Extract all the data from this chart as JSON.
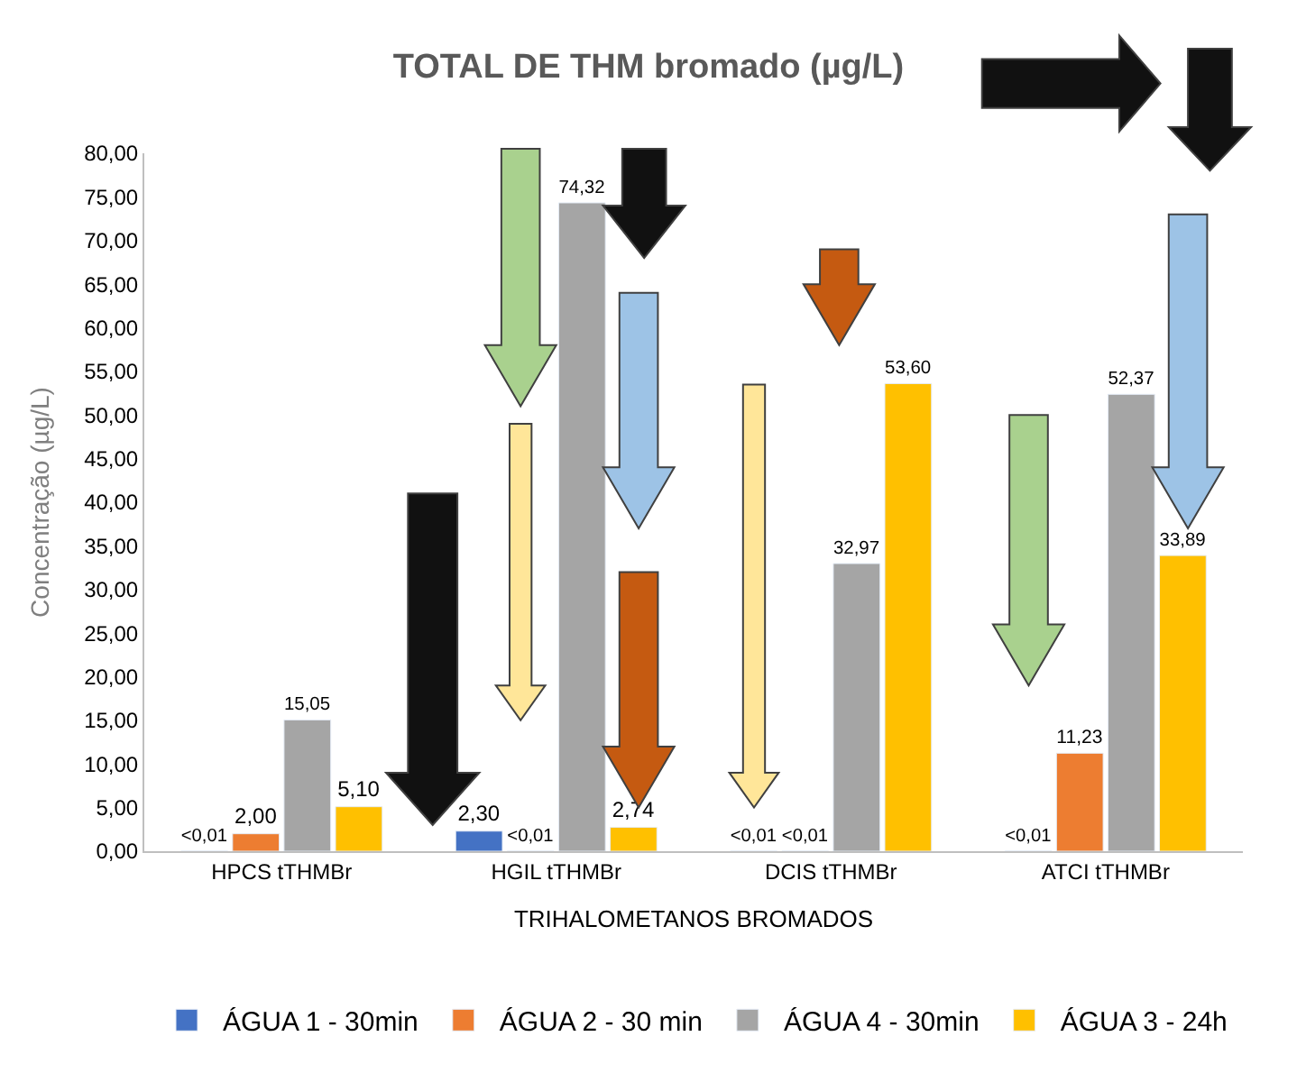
{
  "chart_data": {
    "type": "bar",
    "title": "TOTAL DE THM bromado (µg/L)",
    "xlabel": "TRIHALOMETANOS BROMADOS",
    "ylabel": "Concentração (µg/L)",
    "categories": [
      "HPCS tTHMBr",
      "HGIL tTHMBr",
      "DCIS tTHMBr",
      "ATCI tTHMBr"
    ],
    "series": [
      {
        "name": "ÁGUA 1 - 30min",
        "color": "#4472c4",
        "values": [
          0.01,
          2.3,
          0.01,
          0.01
        ],
        "value_labels": [
          "<0,01",
          "2,30",
          "<0,01",
          "<0,01"
        ]
      },
      {
        "name": "ÁGUA 2 - 30 min",
        "color": "#ed7d31",
        "values": [
          2.0,
          0.01,
          0.01,
          11.23
        ],
        "value_labels": [
          "2,00",
          "<0,01",
          "<0,01",
          "11,23"
        ]
      },
      {
        "name": "ÁGUA 4 - 30min",
        "color": "#a5a5a5",
        "values": [
          15.05,
          74.32,
          32.97,
          52.37
        ],
        "value_labels": [
          "15,05",
          "74,32",
          "32,97",
          "52,37"
        ]
      },
      {
        "name": "ÁGUA 3 - 24h",
        "color": "#ffc000",
        "values": [
          5.1,
          2.74,
          53.6,
          33.89
        ],
        "value_labels": [
          "5,10",
          "2,74",
          "53,60",
          "33,89"
        ]
      }
    ],
    "ylim": [
      0,
      80
    ],
    "yticks": [
      {
        "value": 0,
        "label": "0,00"
      },
      {
        "value": 5,
        "label": "5,00"
      },
      {
        "value": 10,
        "label": "10,00"
      },
      {
        "value": 15,
        "label": "15,00"
      },
      {
        "value": 20,
        "label": "20,00"
      },
      {
        "value": 25,
        "label": "25,00"
      },
      {
        "value": 30,
        "label": "30,00"
      },
      {
        "value": 35,
        "label": "35,00"
      },
      {
        "value": 40,
        "label": "40,00"
      },
      {
        "value": 45,
        "label": "45,00"
      },
      {
        "value": 50,
        "label": "50,00"
      },
      {
        "value": 55,
        "label": "55,00"
      },
      {
        "value": 60,
        "label": "60,00"
      },
      {
        "value": 65,
        "label": "65,00"
      },
      {
        "value": 70,
        "label": "70,00"
      },
      {
        "value": 75,
        "label": "75,00"
      },
      {
        "value": 80,
        "label": "80,00"
      }
    ],
    "legend": "bottom"
  }
}
